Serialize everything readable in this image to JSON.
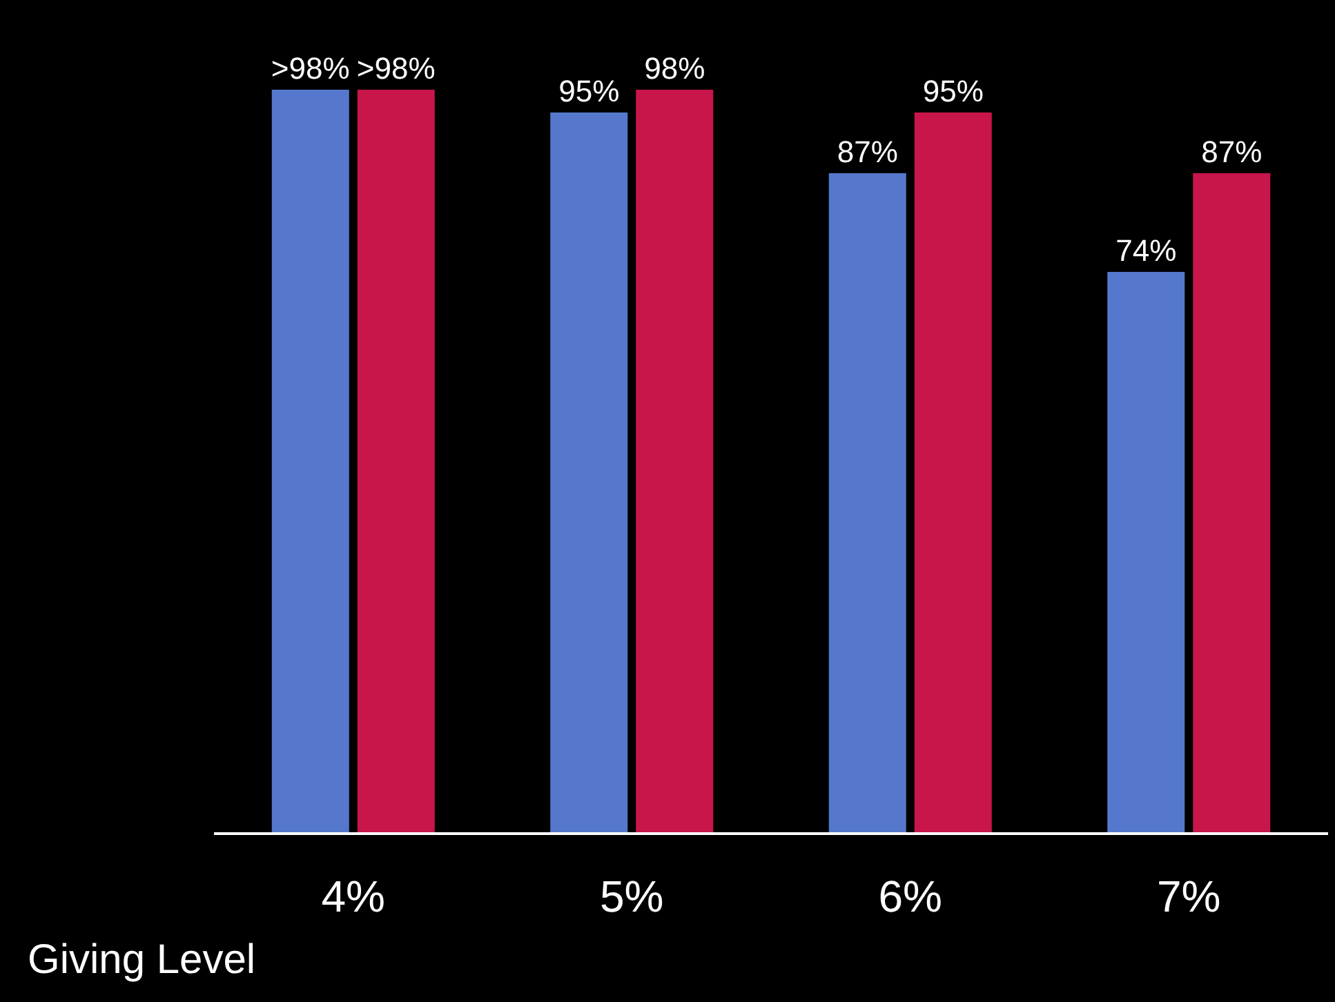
{
  "chart_data": {
    "type": "bar",
    "xlabel": "Giving Level",
    "categories": [
      "4%",
      "5%",
      "6%",
      "7%"
    ],
    "series": [
      {
        "color": "#5578cc",
        "values": [
          98,
          95,
          87,
          74
        ],
        "value_labels": [
          ">98%",
          "95%",
          "87%",
          "74%"
        ]
      },
      {
        "color": "#c8164a",
        "values": [
          98,
          98,
          95,
          87
        ],
        "value_labels": [
          ">98%",
          "98%",
          "95%",
          "87%"
        ]
      }
    ]
  }
}
